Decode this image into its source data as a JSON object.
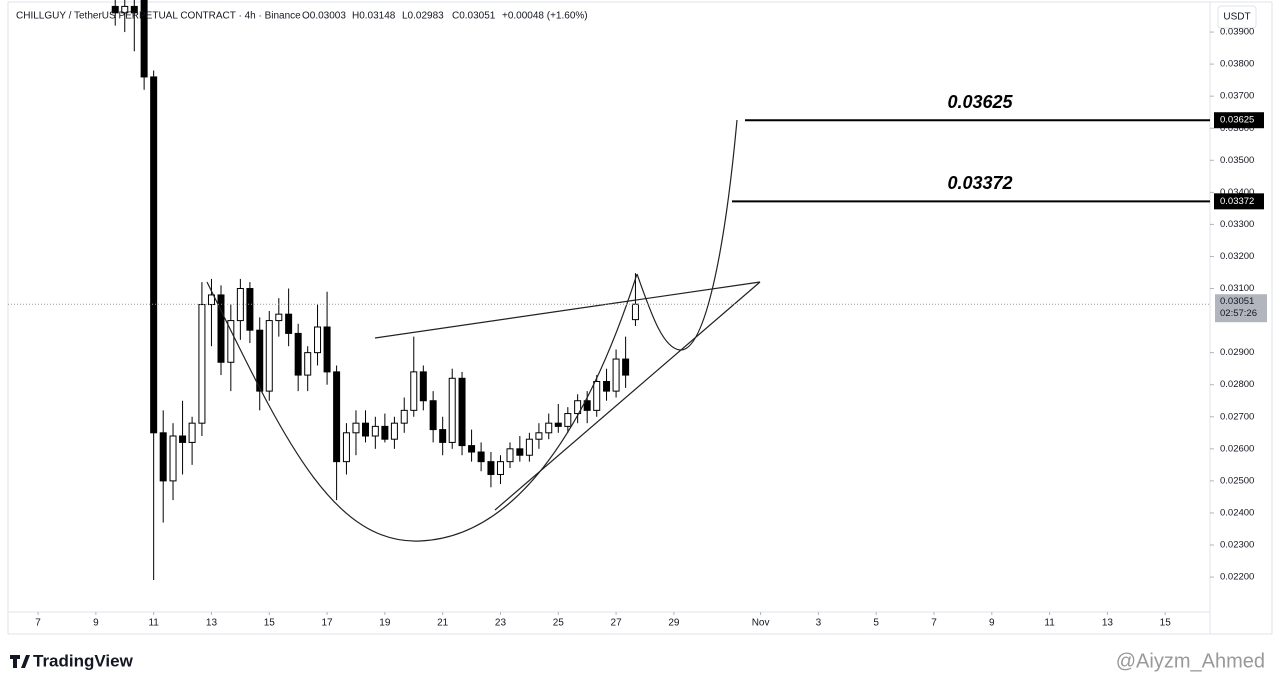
{
  "header": {
    "title": "CHILLGUY / TetherUS PERPETUAL CONTRACT · 4h · Binance",
    "open": "O0.03003",
    "high": "H0.03148",
    "low": "L0.02983",
    "close": "C0.03051",
    "change": "+0.00048 (+1.60%)"
  },
  "currency": "USDT",
  "brand": "TradingView",
  "watermark": "@Aiyzm_Ahmed",
  "countdown": "02:57:26",
  "chart_data": {
    "type": "candlestick",
    "color_up": "#ffffff",
    "color_down": "#000000",
    "x": [
      9.67,
      10,
      10.33,
      10.67,
      11,
      11.33,
      11.67,
      12,
      12.33,
      12.67,
      13,
      13.33,
      13.67,
      14,
      14.33,
      14.67,
      15,
      15.33,
      15.67,
      16,
      16.33,
      16.67,
      17,
      17.33,
      17.67,
      18,
      18.33,
      18.67,
      19,
      19.33,
      19.67,
      20,
      20.33,
      20.67,
      21,
      21.33,
      21.67,
      22,
      22.33,
      22.67,
      23,
      23.33,
      23.67,
      24,
      24.33,
      24.67,
      25,
      25.33,
      25.67,
      26,
      26.33,
      26.67,
      27,
      27.33,
      27.67
    ],
    "open": [
      0.0398,
      0.0396,
      0.0398,
      0.04,
      0.0376,
      0.0265,
      0.025,
      0.0264,
      0.0262,
      0.0268,
      0.0305,
      0.0308,
      0.0287,
      0.03,
      0.031,
      0.0297,
      0.0278,
      0.03,
      0.0302,
      0.0296,
      0.0283,
      0.029,
      0.0298,
      0.0284,
      0.0256,
      0.0265,
      0.0268,
      0.0264,
      0.0267,
      0.0263,
      0.0268,
      0.0272,
      0.0284,
      0.0275,
      0.0266,
      0.0262,
      0.0282,
      0.0261,
      0.0259,
      0.0256,
      0.0252,
      0.0256,
      0.026,
      0.0258,
      0.0263,
      0.0265,
      0.0268,
      0.0267,
      0.0271,
      0.0275,
      0.0272,
      0.0281,
      0.0278,
      0.0288,
      0.03003
    ],
    "high": [
      0.04,
      0.04,
      0.04,
      0.04,
      0.0378,
      0.0272,
      0.0268,
      0.0275,
      0.027,
      0.0312,
      0.0313,
      0.0311,
      0.0305,
      0.0313,
      0.0312,
      0.0301,
      0.0303,
      0.0307,
      0.031,
      0.0299,
      0.0292,
      0.0305,
      0.0309,
      0.0286,
      0.0268,
      0.0272,
      0.0272,
      0.027,
      0.0271,
      0.027,
      0.0276,
      0.0295,
      0.0286,
      0.0278,
      0.027,
      0.0285,
      0.0284,
      0.0266,
      0.0262,
      0.0259,
      0.0258,
      0.0262,
      0.0264,
      0.0265,
      0.0268,
      0.0271,
      0.0274,
      0.0273,
      0.0277,
      0.0278,
      0.0283,
      0.0285,
      0.0291,
      0.0295,
      0.03148
    ],
    "low": [
      0.0392,
      0.039,
      0.0384,
      0.0372,
      0.02191,
      0.0237,
      0.0244,
      0.0252,
      0.0255,
      0.0264,
      0.0292,
      0.0283,
      0.0278,
      0.0294,
      0.0293,
      0.0272,
      0.0275,
      0.0295,
      0.0292,
      0.0278,
      0.0278,
      0.0286,
      0.028,
      0.0244,
      0.0252,
      0.0258,
      0.0262,
      0.026,
      0.0262,
      0.026,
      0.0265,
      0.027,
      0.0272,
      0.0262,
      0.0258,
      0.026,
      0.0258,
      0.0256,
      0.0253,
      0.0248,
      0.0249,
      0.0254,
      0.0256,
      0.0256,
      0.026,
      0.0263,
      0.0265,
      0.0265,
      0.0268,
      0.0268,
      0.027,
      0.0275,
      0.0276,
      0.0279,
      0.02983
    ],
    "close": [
      0.0396,
      0.0398,
      0.0396,
      0.0376,
      0.0265,
      0.025,
      0.0264,
      0.0262,
      0.0268,
      0.0305,
      0.0308,
      0.0287,
      0.03,
      0.031,
      0.0297,
      0.0278,
      0.03,
      0.0302,
      0.0296,
      0.0283,
      0.029,
      0.0298,
      0.0284,
      0.0256,
      0.0265,
      0.0268,
      0.0264,
      0.0267,
      0.0263,
      0.0268,
      0.0272,
      0.0284,
      0.0275,
      0.0266,
      0.0262,
      0.0282,
      0.0261,
      0.0259,
      0.0256,
      0.0252,
      0.0256,
      0.026,
      0.0258,
      0.0263,
      0.0265,
      0.0268,
      0.0267,
      0.0271,
      0.0275,
      0.0272,
      0.0281,
      0.0278,
      0.0288,
      0.0283,
      0.03051
    ],
    "levels": [
      0.03625,
      0.03372
    ],
    "ylim": [
      0.02091,
      0.04
    ],
    "yticks": [
      {
        "value": 0.022,
        "label": "0.02200"
      },
      {
        "value": 0.023,
        "label": "0.02300"
      },
      {
        "value": 0.024,
        "label": "0.02400"
      },
      {
        "value": 0.025,
        "label": "0.02500"
      },
      {
        "value": 0.026,
        "label": "0.02600"
      },
      {
        "value": 0.027,
        "label": "0.02700"
      },
      {
        "value": 0.028,
        "label": "0.02800"
      },
      {
        "value": 0.029,
        "label": "0.02900"
      },
      {
        "value": 0.031,
        "label": "0.03100"
      },
      {
        "value": 0.032,
        "label": "0.03200"
      },
      {
        "value": 0.033,
        "label": "0.03300"
      },
      {
        "value": 0.034,
        "label": "0.03400"
      },
      {
        "value": 0.035,
        "label": "0.03500"
      },
      {
        "value": 0.036,
        "label": "0.03600"
      },
      {
        "value": 0.037,
        "label": "0.03700"
      },
      {
        "value": 0.038,
        "label": "0.03800"
      },
      {
        "value": 0.039,
        "label": "0.03900"
      }
    ],
    "xlim": [
      5.96,
      47.55
    ],
    "xticks": [
      7,
      9,
      11,
      13,
      15,
      17,
      19,
      21,
      23,
      25,
      27,
      29,
      {
        "value": 32,
        "label": "Nov"
      },
      {
        "value": 34,
        "label": "3"
      },
      {
        "value": 36,
        "label": "5"
      },
      {
        "value": 38,
        "label": "7"
      },
      {
        "value": 40,
        "label": "9"
      },
      {
        "value": 42,
        "label": "11"
      },
      {
        "value": 44,
        "label": "13"
      },
      {
        "value": 46,
        "label": "15"
      }
    ]
  }
}
